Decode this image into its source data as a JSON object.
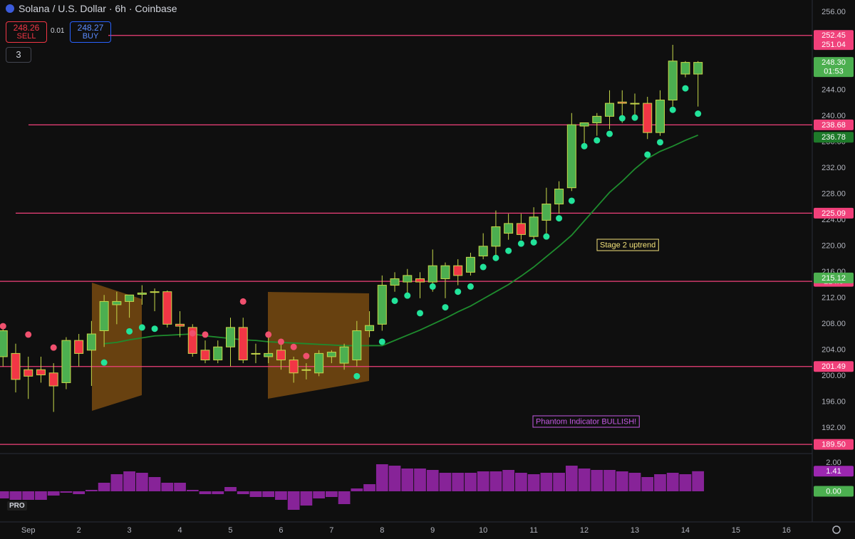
{
  "header": {
    "title": "Solana / U.S. Dollar · 6h · Coinbase",
    "sell_price": "248.26",
    "sell": "SELL",
    "spread": "0.01",
    "buy_price": "248.27",
    "buy": "BUY",
    "indicators": "3",
    "logo": "PRO"
  },
  "chart_data": [
    {
      "type": "candlestick",
      "x": [
        0.5,
        0.75,
        1,
        1.25,
        1.5,
        1.75,
        2,
        2.25,
        2.5,
        2.75,
        3,
        3.25,
        3.5,
        3.75,
        4,
        4.25,
        4.5,
        4.75,
        5,
        5.25,
        5.5,
        5.75,
        6,
        6.25,
        6.5,
        6.75,
        7,
        7.25,
        7.5,
        7.75,
        8,
        8.25,
        8.5,
        8.75,
        9,
        9.25,
        9.5,
        9.75,
        10,
        10.25,
        10.5,
        10.75,
        11,
        11.25,
        11.5,
        11.75,
        12,
        12.25,
        12.5,
        12.75,
        13,
        13.25,
        13.5,
        13.75,
        14,
        14.25
      ],
      "open": [
        203,
        203.5,
        201,
        201,
        200.5,
        199,
        205.5,
        204,
        207,
        211,
        211.5,
        212.6,
        212.9,
        213,
        208,
        207.5,
        204,
        202.5,
        204.5,
        207.5,
        203.5,
        203,
        204,
        202.5,
        201,
        200.5,
        203,
        202,
        202.5,
        207,
        208,
        214,
        214.5,
        215,
        214.5,
        215,
        217,
        216,
        218.5,
        220,
        222,
        223.5,
        221.5,
        224,
        226.5,
        229,
        238.5,
        239,
        240,
        242.2,
        242,
        242,
        237.5,
        242.5,
        246.5,
        246.5
      ],
      "high": [
        207.5,
        205,
        203,
        203,
        202,
        206,
        206.5,
        208.5,
        212.5,
        213,
        212.5,
        214,
        213.5,
        213.2,
        210,
        208,
        205.5,
        205.5,
        209,
        209,
        205,
        206,
        205,
        203,
        202,
        204,
        204,
        205,
        208.5,
        210,
        215.5,
        216,
        216.5,
        216,
        219.5,
        217.5,
        218,
        219,
        222,
        225.5,
        225,
        225,
        226,
        229,
        230,
        240.5,
        239,
        240.5,
        244,
        244,
        243.5,
        243,
        244,
        251,
        248.5,
        248.5
      ],
      "low": [
        201.5,
        197.5,
        196.5,
        199,
        194.5,
        198,
        201.5,
        198.5,
        204.5,
        208,
        209,
        211,
        210,
        207.5,
        206,
        203,
        202,
        202,
        201.5,
        202,
        202,
        202,
        201,
        199,
        199.5,
        200,
        202,
        201,
        201.5,
        206,
        207,
        213,
        212.5,
        212,
        213,
        212,
        214,
        215.5,
        218,
        218,
        221,
        221,
        221,
        222,
        225,
        228.5,
        235,
        237,
        238,
        239,
        240,
        236.5,
        237,
        241.5,
        246,
        241.5
      ],
      "close": [
        207,
        199.5,
        200,
        200.2,
        198.5,
        205.5,
        203.5,
        206.5,
        211.5,
        211.5,
        212.5,
        212.8,
        213,
        208,
        207.7,
        203.5,
        202.5,
        204.5,
        207.5,
        202.5,
        203.5,
        203.5,
        202.5,
        200.5,
        201,
        203.5,
        203.7,
        204.5,
        207,
        207.8,
        214,
        215,
        215.5,
        214.5,
        217,
        217,
        215.5,
        218.3,
        220,
        223,
        223.5,
        221.8,
        224.5,
        226.5,
        228.8,
        238.7,
        239,
        240,
        242,
        242,
        242,
        237.5,
        242.5,
        248.5,
        248.3,
        248.3
      ],
      "up_color": "#4caf50",
      "down_color": "#f23645",
      "border_color": "#c6d84a",
      "xlim": [
        0.44,
        16.51
      ],
      "xticks": [
        {
          "value": 1,
          "label": "Sep"
        },
        2,
        3,
        4,
        5,
        6,
        7,
        8,
        9,
        10,
        11,
        12,
        13,
        14,
        15,
        16
      ],
      "ylim": [
        188.2,
        257.9
      ],
      "yticks": [
        {
          "value": 256,
          "label": "256.00"
        },
        {
          "value": 244,
          "label": "244.00"
        },
        {
          "value": 240,
          "label": "240.00"
        },
        {
          "value": 236,
          "label": "236.00"
        },
        {
          "value": 232,
          "label": "232.00"
        },
        {
          "value": 228,
          "label": "228.00"
        },
        {
          "value": 224,
          "label": "224.00"
        },
        {
          "value": 220,
          "label": "220.00"
        },
        {
          "value": 216,
          "label": "216.00"
        },
        {
          "value": 212,
          "label": "212.00"
        },
        {
          "value": 208,
          "label": "208.00"
        },
        {
          "value": 204,
          "label": "204.00"
        },
        {
          "value": 200,
          "label": "200.00"
        },
        {
          "value": 196,
          "label": "196.00"
        },
        {
          "value": 192,
          "label": "192.00"
        }
      ],
      "grid": false,
      "lines": [
        {
          "color": "#1e8c2e",
          "values": [
            null,
            null,
            null,
            null,
            null,
            null,
            null,
            null,
            205,
            205.2,
            205.6,
            205.9,
            206.2,
            206.3,
            206.4,
            206.5,
            206.2,
            206,
            205.8,
            205.6,
            205.5,
            205.3,
            205.2,
            205.1,
            205,
            204.9,
            204.8,
            204.7,
            204.7,
            204.7,
            204.7,
            205.5,
            206.3,
            207.1,
            208,
            208.9,
            209.9,
            210.8,
            211.9,
            213,
            214.1,
            215.4,
            216.8,
            218.4,
            220,
            221.7,
            223.9,
            226.1,
            228.3,
            230,
            231.9,
            233.5,
            234.6,
            235.4,
            236.3,
            237.1
          ]
        }
      ],
      "dots": [
        {
          "color": "#22e39a",
          "values": [
            null,
            null,
            null,
            null,
            null,
            null,
            null,
            null,
            202.1,
            null,
            206.9,
            207.5,
            207.3,
            null,
            null,
            null,
            null,
            null,
            null,
            null,
            null,
            null,
            null,
            null,
            null,
            null,
            null,
            null,
            200,
            null,
            205.3,
            211.6,
            212.4,
            209.7,
            213.8,
            210.6,
            213,
            213.8,
            216.8,
            218.2,
            219.3,
            220.4,
            220.6,
            221.5,
            224.3,
            227,
            235.4,
            236.3,
            237.3,
            239.7,
            239.8,
            234.1,
            236,
            241,
            244.3,
            240.4
          ]
        },
        {
          "color": "#f0506e",
          "values": [
            207.7,
            null,
            206.4,
            null,
            204.4,
            null,
            null,
            null,
            null,
            null,
            null,
            null,
            null,
            null,
            null,
            206.6,
            206.4,
            null,
            null,
            211.5,
            null,
            206.4,
            205.3,
            204.5,
            203.1,
            null,
            null,
            null,
            null,
            null,
            null,
            null,
            null,
            null,
            null,
            null,
            null,
            null,
            null,
            null,
            null,
            null,
            null,
            null,
            null,
            null,
            null,
            null,
            null,
            null,
            null,
            null,
            null,
            null,
            null,
            null
          ]
        }
      ],
      "levels": [
        {
          "value": 252.45,
          "color": "#f0407a"
        },
        {
          "value": 238.68,
          "color": "#f0407a"
        },
        {
          "value": 225.09,
          "color": "#f0407a"
        },
        {
          "value": 214.6,
          "color": "#f0407a"
        },
        {
          "value": 201.49,
          "color": "#f0407a"
        },
        {
          "value": 189.5,
          "label": "189.50",
          "color": "#f0407a"
        }
      ],
      "tags": [
        {
          "value": 251.04,
          "color": "#f0407a"
        },
        {
          "value": 248.3,
          "label": "248.30",
          "color": "#4caf50",
          "countdown": "01:53"
        },
        {
          "value": 236.78,
          "color": "#1e7a2a"
        },
        {
          "value": 215.12,
          "color": "#4caf50"
        }
      ],
      "annotations": [
        {
          "text": "Stage 2 uptrend",
          "color": "#f3e27a"
        },
        {
          "text": "Phantom Indicator BULLISH!",
          "color": "#c65ae6"
        }
      ]
    },
    {
      "type": "bar",
      "x": [
        0.5,
        0.75,
        1,
        1.25,
        1.5,
        1.75,
        2,
        2.25,
        2.5,
        2.75,
        3,
        3.25,
        3.5,
        3.75,
        4,
        4.25,
        4.5,
        4.75,
        5,
        5.25,
        5.5,
        5.75,
        6,
        6.25,
        6.5,
        6.75,
        7,
        7.25,
        7.5,
        7.75,
        8,
        8.25,
        8.5,
        8.75,
        9,
        9.25,
        9.5,
        9.75,
        10,
        10.25,
        10.5,
        10.75,
        11,
        11.25,
        11.5,
        11.75,
        12,
        12.25,
        12.5,
        12.75,
        13,
        13.25,
        13.5,
        13.75,
        14,
        14.25
      ],
      "values": [
        -0.5,
        -0.6,
        -0.6,
        -0.6,
        -0.3,
        -0.1,
        -0.2,
        0.1,
        0.6,
        1.2,
        1.4,
        1.3,
        1.0,
        0.6,
        0.6,
        0.1,
        -0.2,
        -0.2,
        0.3,
        -0.2,
        -0.4,
        -0.4,
        -0.6,
        -1.3,
        -1.0,
        -0.5,
        -0.4,
        -0.9,
        0.2,
        0.5,
        1.9,
        1.8,
        1.6,
        1.6,
        1.5,
        1.3,
        1.3,
        1.3,
        1.4,
        1.4,
        1.5,
        1.3,
        1.2,
        1.3,
        1.3,
        1.8,
        1.6,
        1.5,
        1.5,
        1.4,
        1.3,
        1.0,
        1.2,
        1.3,
        1.2,
        1.41
      ],
      "color": "#9c27b0",
      "xlim": [
        0.44,
        16.51
      ],
      "ylim": [
        -1.5,
        2.5
      ],
      "yticks": [
        {
          "value": 2,
          "label": "2.00"
        }
      ],
      "tags": [
        {
          "value": 1.41,
          "color": "#9c27b0"
        },
        {
          "value": 0,
          "label": "0.00",
          "color": "#4caf50"
        }
      ]
    }
  ]
}
